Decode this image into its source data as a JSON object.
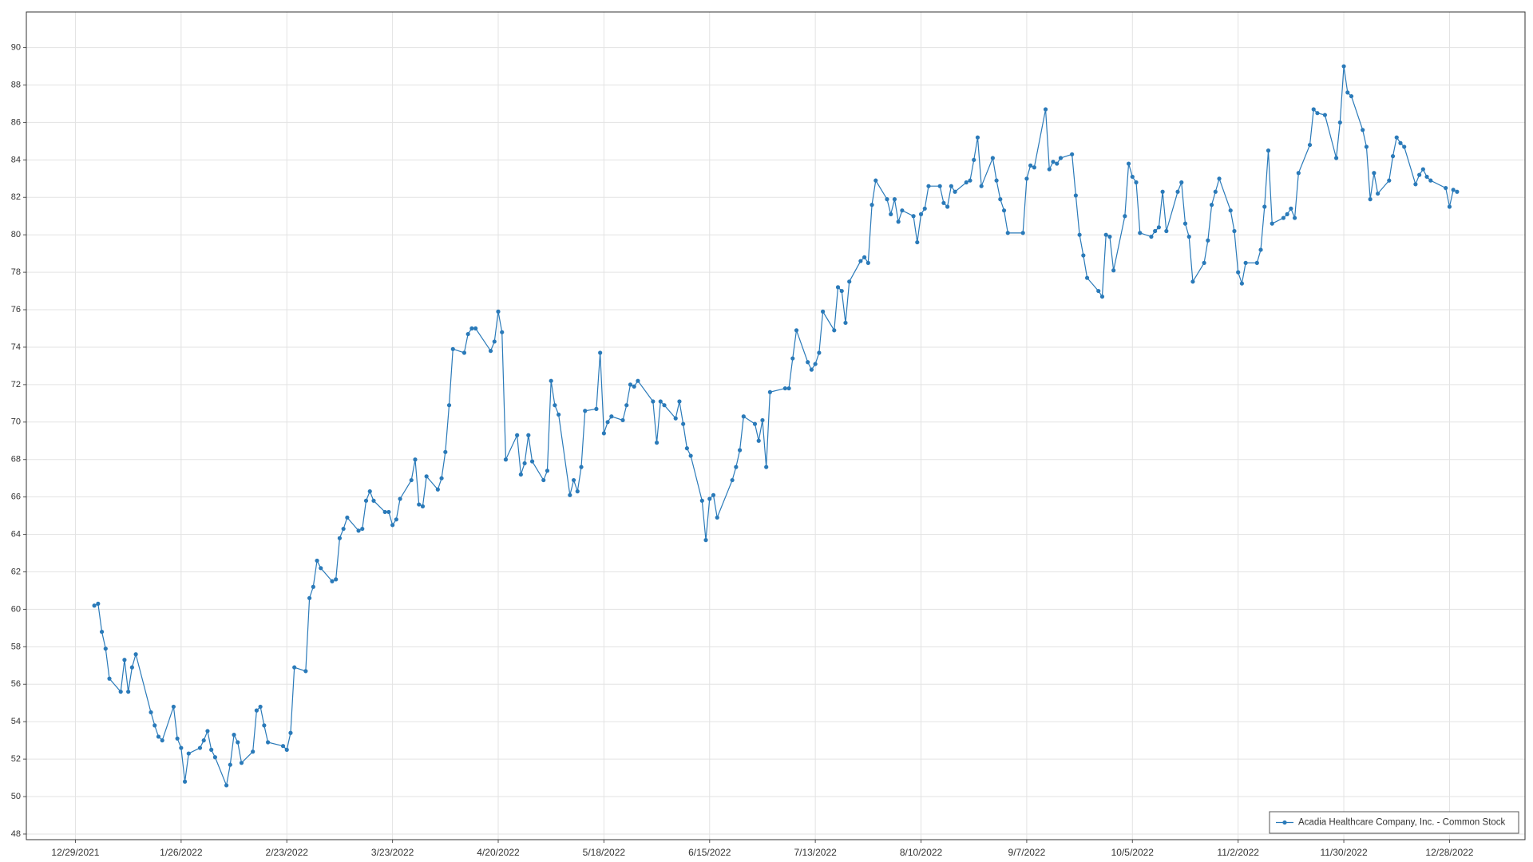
{
  "chart_data": {
    "type": "line",
    "x": [
      "1/3/2022",
      "1/4/2022",
      "1/5/2022",
      "1/6/2022",
      "1/7/2022",
      "1/10/2022",
      "1/11/2022",
      "1/12/2022",
      "1/13/2022",
      "1/14/2022",
      "1/18/2022",
      "1/19/2022",
      "1/20/2022",
      "1/21/2022",
      "1/24/2022",
      "1/25/2022",
      "1/26/2022",
      "1/27/2022",
      "1/28/2022",
      "1/31/2022",
      "2/1/2022",
      "2/2/2022",
      "2/3/2022",
      "2/4/2022",
      "2/7/2022",
      "2/8/2022",
      "2/9/2022",
      "2/10/2022",
      "2/11/2022",
      "2/14/2022",
      "2/15/2022",
      "2/16/2022",
      "2/17/2022",
      "2/18/2022",
      "2/22/2022",
      "2/23/2022",
      "2/24/2022",
      "2/25/2022",
      "2/28/2022",
      "3/1/2022",
      "3/2/2022",
      "3/3/2022",
      "3/4/2022",
      "3/7/2022",
      "3/8/2022",
      "3/9/2022",
      "3/10/2022",
      "3/11/2022",
      "3/14/2022",
      "3/15/2022",
      "3/16/2022",
      "3/17/2022",
      "3/18/2022",
      "3/21/2022",
      "3/22/2022",
      "3/23/2022",
      "3/24/2022",
      "3/25/2022",
      "3/28/2022",
      "3/29/2022",
      "3/30/2022",
      "3/31/2022",
      "4/1/2022",
      "4/4/2022",
      "4/5/2022",
      "4/6/2022",
      "4/7/2022",
      "4/8/2022",
      "4/11/2022",
      "4/12/2022",
      "4/13/2022",
      "4/14/2022",
      "4/18/2022",
      "4/19/2022",
      "4/20/2022",
      "4/21/2022",
      "4/22/2022",
      "4/25/2022",
      "4/26/2022",
      "4/27/2022",
      "4/28/2022",
      "4/29/2022",
      "5/2/2022",
      "5/3/2022",
      "5/4/2022",
      "5/5/2022",
      "5/6/2022",
      "5/9/2022",
      "5/10/2022",
      "5/11/2022",
      "5/12/2022",
      "5/13/2022",
      "5/16/2022",
      "5/17/2022",
      "5/18/2022",
      "5/19/2022",
      "5/20/2022",
      "5/23/2022",
      "5/24/2022",
      "5/25/2022",
      "5/26/2022",
      "5/27/2022",
      "5/31/2022",
      "6/1/2022",
      "6/2/2022",
      "6/3/2022",
      "6/6/2022",
      "6/7/2022",
      "6/8/2022",
      "6/9/2022",
      "6/10/2022",
      "6/13/2022",
      "6/14/2022",
      "6/15/2022",
      "6/16/2022",
      "6/17/2022",
      "6/21/2022",
      "6/22/2022",
      "6/23/2022",
      "6/24/2022",
      "6/27/2022",
      "6/28/2022",
      "6/29/2022",
      "6/30/2022",
      "7/1/2022",
      "7/5/2022",
      "7/6/2022",
      "7/7/2022",
      "7/8/2022",
      "7/11/2022",
      "7/12/2022",
      "7/13/2022",
      "7/14/2022",
      "7/15/2022",
      "7/18/2022",
      "7/19/2022",
      "7/20/2022",
      "7/21/2022",
      "7/22/2022",
      "7/25/2022",
      "7/26/2022",
      "7/27/2022",
      "7/28/2022",
      "7/29/2022",
      "8/1/2022",
      "8/2/2022",
      "8/3/2022",
      "8/4/2022",
      "8/5/2022",
      "8/8/2022",
      "8/9/2022",
      "8/10/2022",
      "8/11/2022",
      "8/12/2022",
      "8/15/2022",
      "8/16/2022",
      "8/17/2022",
      "8/18/2022",
      "8/19/2022",
      "8/22/2022",
      "8/23/2022",
      "8/24/2022",
      "8/25/2022",
      "8/26/2022",
      "8/29/2022",
      "8/30/2022",
      "8/31/2022",
      "9/1/2022",
      "9/2/2022",
      "9/6/2022",
      "9/7/2022",
      "9/8/2022",
      "9/9/2022",
      "9/12/2022",
      "9/13/2022",
      "9/14/2022",
      "9/15/2022",
      "9/16/2022",
      "9/19/2022",
      "9/20/2022",
      "9/21/2022",
      "9/22/2022",
      "9/23/2022",
      "9/26/2022",
      "9/27/2022",
      "9/28/2022",
      "9/29/2022",
      "9/30/2022",
      "10/3/2022",
      "10/4/2022",
      "10/5/2022",
      "10/6/2022",
      "10/7/2022",
      "10/10/2022",
      "10/11/2022",
      "10/12/2022",
      "10/13/2022",
      "10/14/2022",
      "10/17/2022",
      "10/18/2022",
      "10/19/2022",
      "10/20/2022",
      "10/21/2022",
      "10/24/2022",
      "10/25/2022",
      "10/26/2022",
      "10/27/2022",
      "10/28/2022",
      "10/31/2022",
      "11/1/2022",
      "11/2/2022",
      "11/3/2022",
      "11/4/2022",
      "11/7/2022",
      "11/8/2022",
      "11/9/2022",
      "11/10/2022",
      "11/11/2022",
      "11/14/2022",
      "11/15/2022",
      "11/16/2022",
      "11/17/2022",
      "11/18/2022",
      "11/21/2022",
      "11/22/2022",
      "11/23/2022",
      "11/25/2022",
      "11/28/2022",
      "11/29/2022",
      "11/30/2022",
      "12/1/2022",
      "12/2/2022",
      "12/5/2022",
      "12/6/2022",
      "12/7/2022",
      "12/8/2022",
      "12/9/2022",
      "12/12/2022",
      "12/13/2022",
      "12/14/2022",
      "12/15/2022",
      "12/16/2022",
      "12/19/2022",
      "12/20/2022",
      "12/21/2022",
      "12/22/2022",
      "12/23/2022",
      "12/27/2022",
      "12/28/2022",
      "12/29/2022",
      "12/30/2022"
    ],
    "series": [
      {
        "name": "Acadia Healthcare Company, Inc. - Common Stock",
        "color": "#2a7ab9",
        "values": [
          60.2,
          60.3,
          58.8,
          57.9,
          56.3,
          55.6,
          57.3,
          55.6,
          56.9,
          57.6,
          54.5,
          53.8,
          53.2,
          53.0,
          54.8,
          53.1,
          52.6,
          50.8,
          52.3,
          52.6,
          53.0,
          53.5,
          52.5,
          52.1,
          50.6,
          51.7,
          53.3,
          52.9,
          51.8,
          52.4,
          54.6,
          54.8,
          53.8,
          52.9,
          52.7,
          52.5,
          53.4,
          56.9,
          56.7,
          60.6,
          61.2,
          62.6,
          62.2,
          61.5,
          61.6,
          63.8,
          64.3,
          64.9,
          64.2,
          64.3,
          65.8,
          66.3,
          65.8,
          65.2,
          65.2,
          64.5,
          64.8,
          65.9,
          66.9,
          68.0,
          65.6,
          65.5,
          67.1,
          66.4,
          67.0,
          68.4,
          70.9,
          73.9,
          73.7,
          74.7,
          75.0,
          75.0,
          73.8,
          74.3,
          75.9,
          74.8,
          68.0,
          69.3,
          67.2,
          67.8,
          69.3,
          67.9,
          66.9,
          67.4,
          72.2,
          70.9,
          70.4,
          66.1,
          66.9,
          66.3,
          67.6,
          70.6,
          70.7,
          73.7,
          69.4,
          70.0,
          70.3,
          70.1,
          70.9,
          72.0,
          71.9,
          72.2,
          71.1,
          68.9,
          71.1,
          70.9,
          70.2,
          71.1,
          69.9,
          68.6,
          68.2,
          65.8,
          63.7,
          65.9,
          66.1,
          64.9,
          66.9,
          67.6,
          68.5,
          70.3,
          69.9,
          69.0,
          70.1,
          67.6,
          71.6,
          71.8,
          71.8,
          73.4,
          74.9,
          73.2,
          72.8,
          73.1,
          73.7,
          75.9,
          74.9,
          77.2,
          77.0,
          75.3,
          77.5,
          78.6,
          78.8,
          78.5,
          81.6,
          82.9,
          81.9,
          81.1,
          81.9,
          80.7,
          81.3,
          81.0,
          79.6,
          81.1,
          81.4,
          82.6,
          82.6,
          81.7,
          81.5,
          82.6,
          82.3,
          82.8,
          82.9,
          84.0,
          85.2,
          82.6,
          84.1,
          82.9,
          81.9,
          81.3,
          80.1,
          80.1,
          83.0,
          83.7,
          83.6,
          86.7,
          83.5,
          83.9,
          83.8,
          84.1,
          84.3,
          82.1,
          80.0,
          78.9,
          77.7,
          77.0,
          76.7,
          80.0,
          79.9,
          78.1,
          81.0,
          83.8,
          83.1,
          82.8,
          80.1,
          79.9,
          80.2,
          80.4,
          82.3,
          80.2,
          82.3,
          82.8,
          80.6,
          79.9,
          77.5,
          78.5,
          79.7,
          81.6,
          82.3,
          83.0,
          81.3,
          80.2,
          78.0,
          77.4,
          78.5,
          78.5,
          79.2,
          81.5,
          84.5,
          80.6,
          80.9,
          81.1,
          81.4,
          80.9,
          83.3,
          84.8,
          86.7,
          86.5,
          86.4,
          84.1,
          86.0,
          89.0,
          87.6,
          87.4,
          85.6,
          84.7,
          81.9,
          83.3,
          82.2,
          82.9,
          84.2,
          85.2,
          84.9,
          84.7,
          82.7,
          83.2,
          83.5,
          83.1,
          82.9,
          82.5,
          81.5,
          82.4,
          82.3
        ]
      }
    ],
    "xlim": [
      "12/16/2021",
      "1/17/2023"
    ],
    "xticks": [
      "12/29/2021",
      "1/26/2022",
      "2/23/2022",
      "3/23/2022",
      "4/20/2022",
      "5/18/2022",
      "6/15/2022",
      "7/13/2022",
      "8/10/2022",
      "9/7/2022",
      "10/5/2022",
      "11/2/2022",
      "11/30/2022",
      "12/28/2022"
    ],
    "ylim": [
      47.7,
      91.9
    ],
    "yticks": [
      48,
      50,
      52,
      54,
      56,
      58,
      60,
      62,
      64,
      66,
      68,
      70,
      72,
      74,
      76,
      78,
      80,
      82,
      84,
      86,
      88,
      90
    ],
    "grid": true,
    "legend": "lower right"
  }
}
